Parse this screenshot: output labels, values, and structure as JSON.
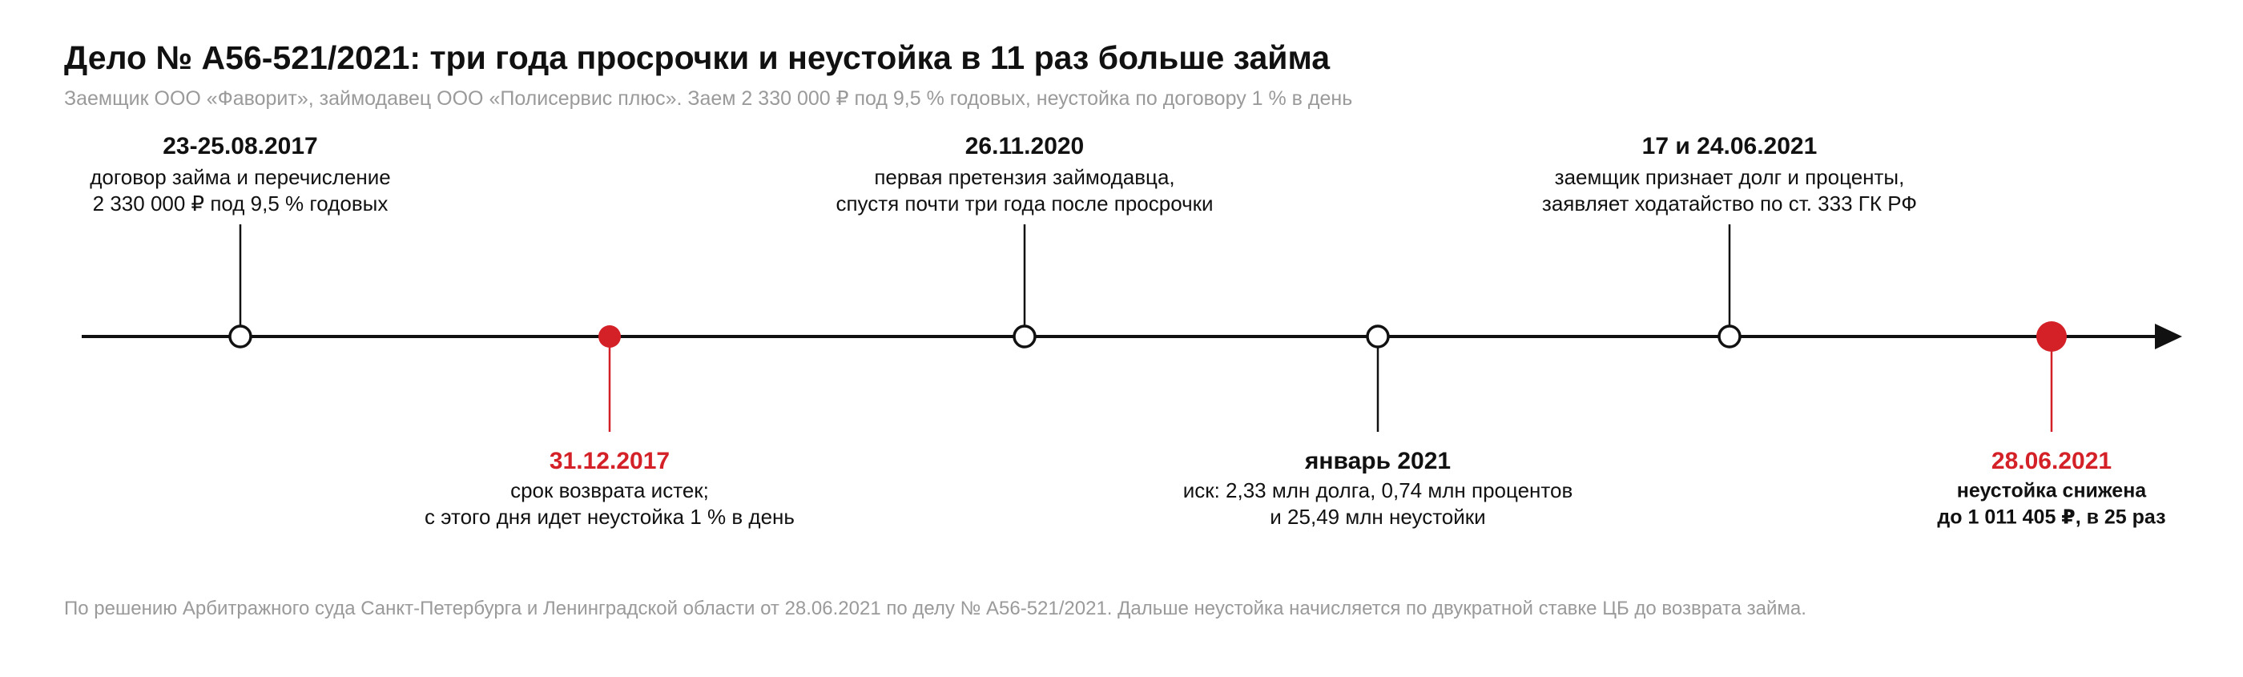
{
  "header": {
    "title": "Дело № А56-521/2021: три года просрочки и неустойка в 11 раз больше займа",
    "subtitle": "Заемщик ООО «Фаворит», займодавец ООО «Полисервис плюс». Заем 2 330 000 ₽ под 9,5 % годовых, неустойка по договору 1 % в день"
  },
  "events": [
    {
      "date": "23-25.08.2017",
      "lines": [
        "договор займа и перечисление",
        "2 330 000 ₽ под 9,5 % годовых"
      ]
    },
    {
      "date": "31.12.2017",
      "color": "#d42027",
      "lines": [
        "срок возврата истек;",
        "с этого дня идет неустойка 1 % в день"
      ]
    },
    {
      "date": "26.11.2020",
      "lines": [
        "первая претензия займодавца,",
        "спустя почти три года после просрочки"
      ]
    },
    {
      "date": "январь 2021",
      "lines": [
        "иск: 2,33 млн долга, 0,74 млн процентов",
        "и 25,49 млн неустойки"
      ]
    },
    {
      "date": "17 и 24.06.2021",
      "lines": [
        "заемщик признает долг и проценты,",
        "заявляет ходатайство по ст. 333 ГК РФ"
      ]
    },
    {
      "date": "28.06.2021",
      "color": "#d42027",
      "lines": [
        "неустойка снижена",
        "до 1 011 405 ₽, в 25 раз"
      ]
    }
  ],
  "footer": "По решению Арбитражного суда Санкт-Петербурга и Ленинградской области от 28.06.2021 по делу № А56-521/2021. Дальше неустойка начисляется по двукратной ставке ЦБ до возврата займа."
}
